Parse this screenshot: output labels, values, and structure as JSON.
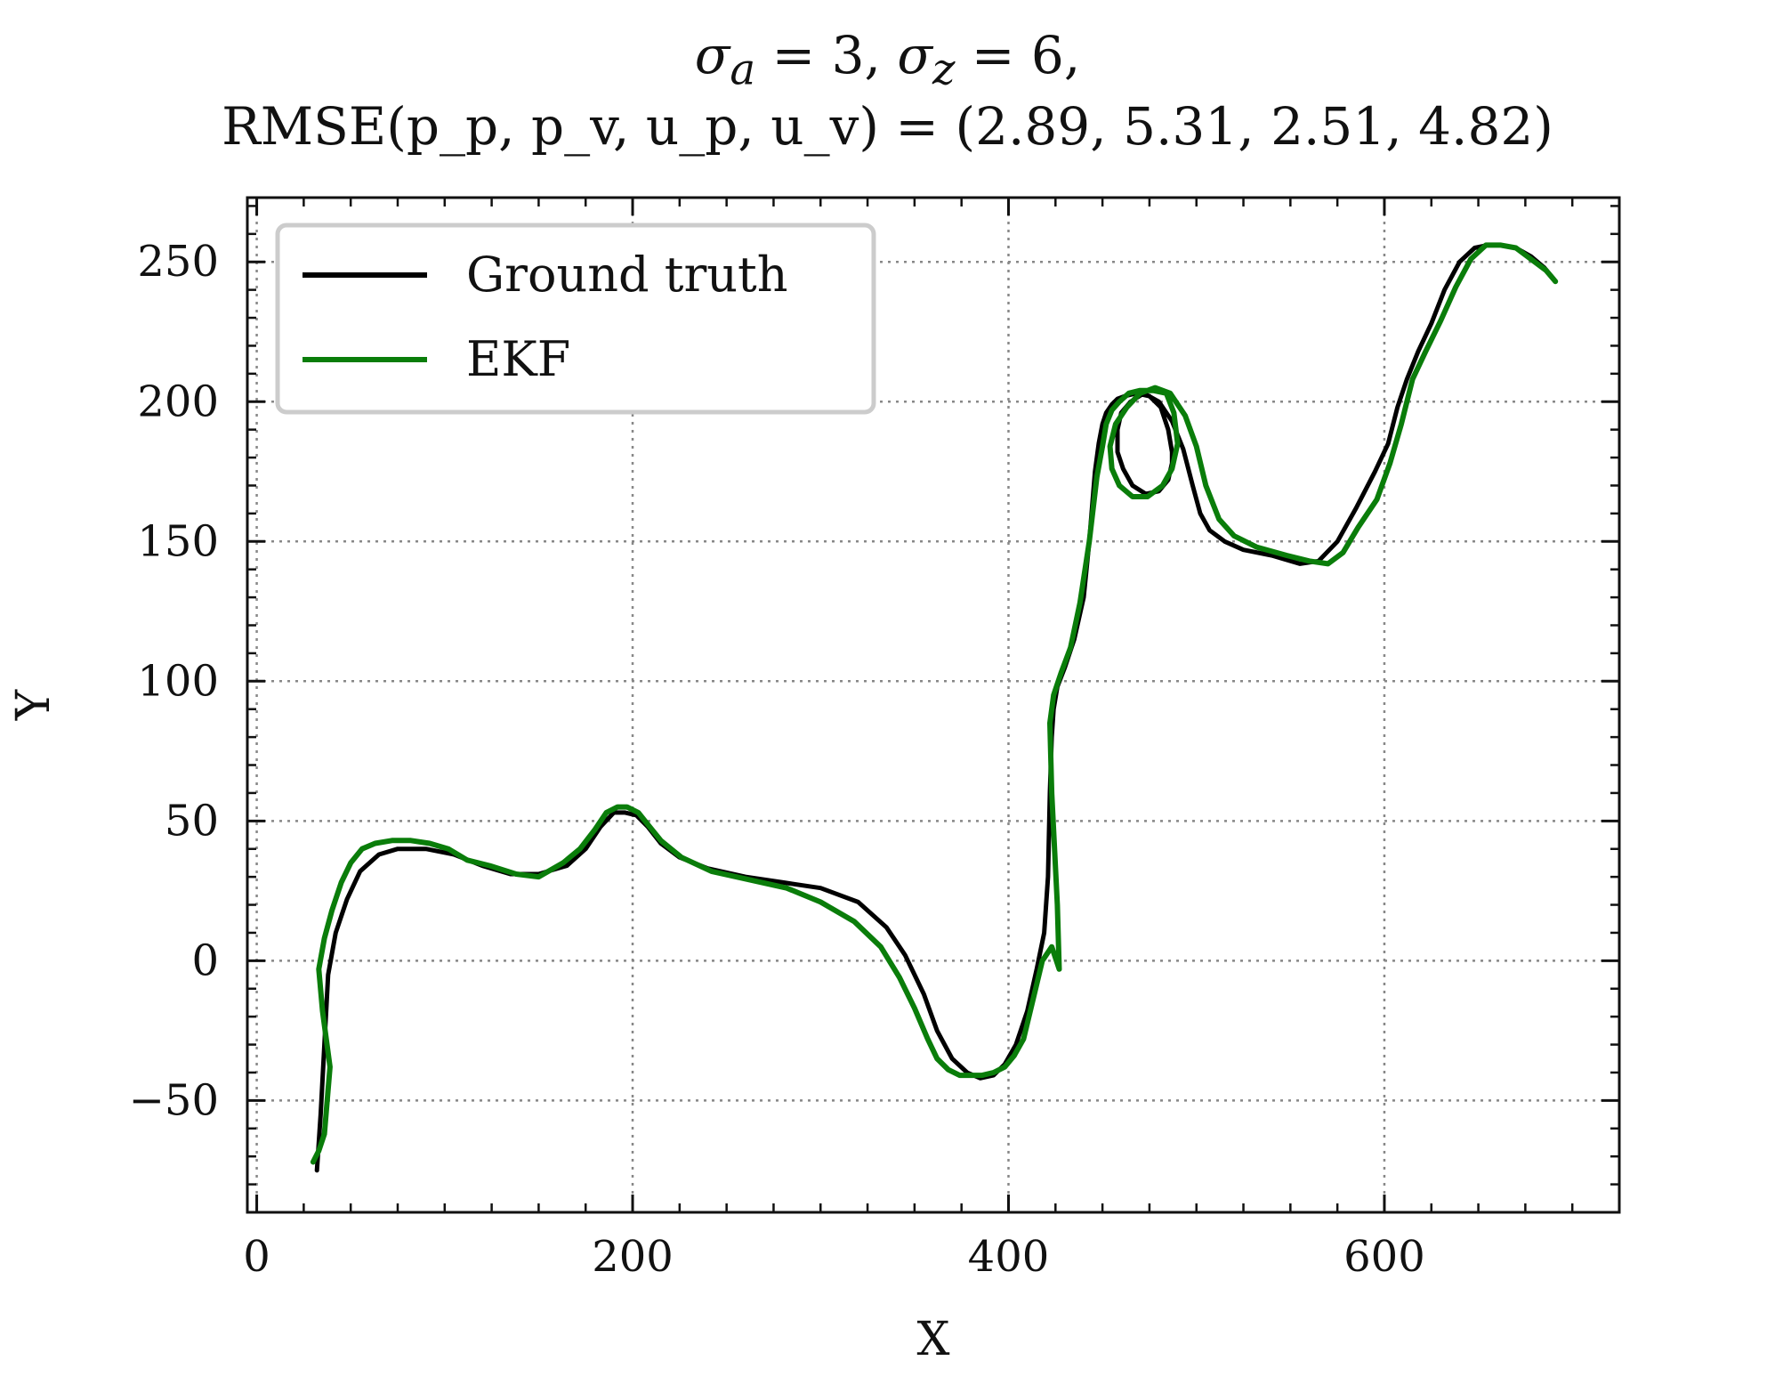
{
  "chart_data": {
    "type": "line",
    "title_line1_parts": [
      "σ",
      "a",
      " = 3, ",
      "σ",
      "z",
      " = 6,"
    ],
    "title_line2": "RMSE(p_p, p_v, u_p, u_v) = (2.89, 5.31, 2.51, 4.82)",
    "xlabel": "X",
    "ylabel": "Y",
    "xlim": [
      -5,
      725
    ],
    "ylim": [
      -90,
      273
    ],
    "xticks": [
      0,
      200,
      400,
      600
    ],
    "yticks": [
      -50,
      0,
      50,
      100,
      150,
      200,
      250
    ],
    "xtick_labels": [
      "0",
      "200",
      "400",
      "600"
    ],
    "ytick_labels": [
      "−50",
      "0",
      "50",
      "100",
      "150",
      "200",
      "250"
    ],
    "grid": true,
    "legend_position": "top-left",
    "series": [
      {
        "name": "Ground truth",
        "color": "#000000",
        "x": [
          32,
          34,
          36,
          38,
          42,
          48,
          55,
          65,
          75,
          90,
          105,
          120,
          135,
          150,
          165,
          175,
          183,
          190,
          196,
          202,
          208,
          215,
          225,
          240,
          260,
          280,
          300,
          320,
          335,
          345,
          355,
          362,
          370,
          378,
          385,
          392,
          398,
          404,
          410,
          415,
          419,
          421,
          422,
          423,
          424,
          426,
          430,
          435,
          440,
          443,
          446,
          448,
          450,
          452,
          455,
          458,
          462,
          468,
          475,
          481,
          485,
          487,
          487,
          485,
          480,
          473,
          466,
          461,
          458,
          458,
          460,
          465,
          472,
          480,
          487,
          493,
          498,
          502,
          507,
          515,
          525,
          540,
          555,
          565,
          575,
          585,
          595,
          602,
          607,
          612,
          618,
          625,
          632,
          640,
          648,
          655,
          662,
          670,
          678,
          685,
          690
        ],
        "y": [
          -75,
          -55,
          -30,
          -5,
          10,
          22,
          32,
          38,
          40,
          40,
          38,
          34,
          31,
          31,
          34,
          40,
          48,
          53,
          53,
          52,
          48,
          42,
          37,
          33,
          30,
          28,
          26,
          21,
          12,
          2,
          -12,
          -25,
          -35,
          -40,
          -42,
          -41,
          -37,
          -30,
          -18,
          -3,
          10,
          30,
          60,
          80,
          90,
          98,
          105,
          115,
          130,
          150,
          175,
          185,
          192,
          196,
          199,
          201,
          202,
          203,
          202,
          198,
          190,
          182,
          178,
          172,
          168,
          167,
          170,
          176,
          182,
          190,
          196,
          200,
          203,
          200,
          193,
          183,
          170,
          160,
          154,
          150,
          147,
          145,
          142,
          143,
          150,
          162,
          175,
          185,
          198,
          208,
          218,
          228,
          240,
          250,
          255,
          256,
          256,
          255,
          252,
          248,
          244
        ]
      },
      {
        "name": "EKF",
        "color": "#0a7d0a",
        "x": [
          30,
          33,
          36,
          39,
          35,
          33,
          36,
          40,
          45,
          50,
          56,
          63,
          72,
          82,
          92,
          102,
          112,
          124,
          138,
          150,
          163,
          172,
          180,
          186,
          192,
          197,
          203,
          209,
          215,
          226,
          242,
          262,
          282,
          300,
          318,
          332,
          342,
          350,
          357,
          362,
          368,
          374,
          380,
          386,
          392,
          398,
          403,
          408,
          413,
          418,
          423,
          427,
          426,
          423,
          422,
          424,
          428,
          433,
          438,
          443,
          447,
          450,
          452,
          455,
          459,
          464,
          470,
          477,
          484,
          488,
          490,
          487,
          482,
          474,
          466,
          459,
          455,
          454,
          457,
          463,
          470,
          478,
          486,
          494,
          500,
          505,
          512,
          520,
          532,
          548,
          560,
          570,
          578,
          586,
          596,
          603,
          609,
          615,
          622,
          630,
          638,
          646,
          654,
          662,
          670,
          678,
          686,
          691
        ],
        "y": [
          -72,
          -68,
          -62,
          -38,
          -18,
          -3,
          8,
          18,
          28,
          35,
          40,
          42,
          43,
          43,
          42,
          40,
          36,
          34,
          31,
          30,
          35,
          40,
          47,
          53,
          55,
          55,
          53,
          48,
          43,
          37,
          32,
          29,
          26,
          21,
          14,
          5,
          -6,
          -17,
          -28,
          -35,
          -39,
          -41,
          -41,
          -41,
          -40,
          -38,
          -34,
          -28,
          -14,
          0,
          5,
          -3,
          20,
          60,
          85,
          95,
          103,
          112,
          128,
          150,
          173,
          184,
          192,
          197,
          200,
          203,
          204,
          204,
          203,
          196,
          185,
          176,
          170,
          166,
          166,
          170,
          176,
          184,
          192,
          198,
          203,
          205,
          203,
          195,
          184,
          170,
          158,
          152,
          148,
          145,
          143,
          142,
          146,
          155,
          165,
          178,
          192,
          208,
          218,
          229,
          241,
          251,
          256,
          256,
          255,
          251,
          247,
          243
        ]
      }
    ]
  }
}
